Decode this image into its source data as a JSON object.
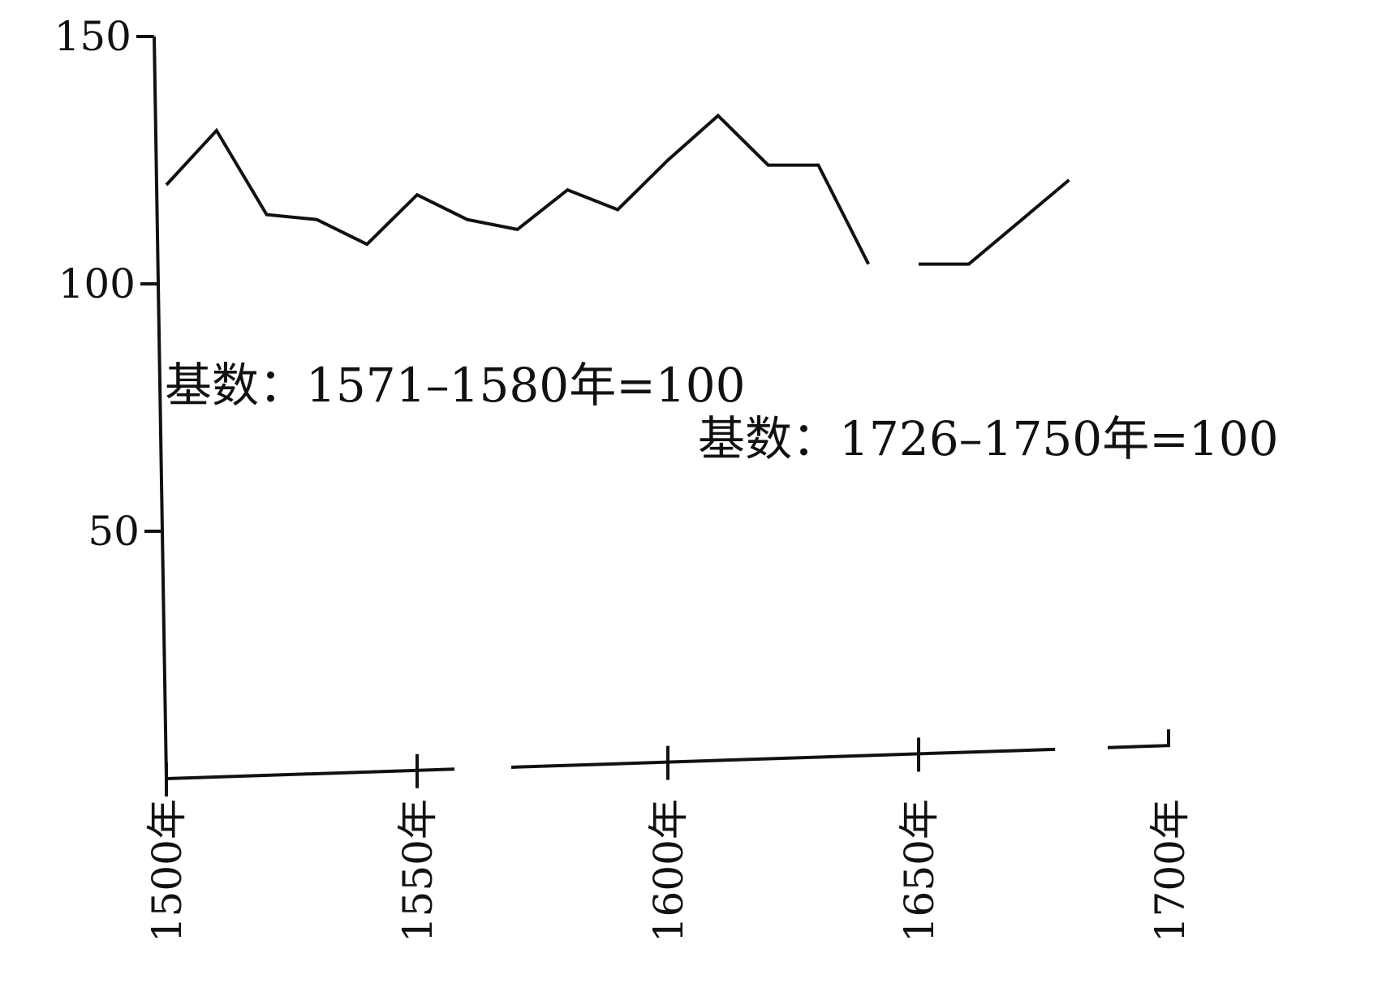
{
  "chart_data": {
    "type": "line",
    "ylim": [
      0,
      150
    ],
    "xlim": [
      1500,
      1700
    ],
    "y_ticks": [
      {
        "value": 150,
        "label": "150"
      },
      {
        "value": 100,
        "label": "100"
      },
      {
        "value": 50,
        "label": "50"
      }
    ],
    "x_ticks": [
      {
        "value": 1500,
        "label": "1500年"
      },
      {
        "value": 1550,
        "label": "1550年"
      },
      {
        "value": 1600,
        "label": "1600年"
      },
      {
        "value": 1650,
        "label": "1650年"
      },
      {
        "value": 1700,
        "label": "1700年"
      }
    ],
    "annotations": [
      {
        "text": "基数：1571–1580年=100"
      },
      {
        "text": "基数：1726–1750年=100"
      }
    ],
    "series": [
      {
        "segments": [
          {
            "x": [
              1500,
              1510,
              1520,
              1530,
              1540,
              1550,
              1560,
              1570,
              1580,
              1590,
              1600,
              1610,
              1620,
              1630,
              1640
            ],
            "y": [
              120,
              131,
              114,
              113,
              108,
              118,
              113,
              111,
              119,
              115,
              125,
              134,
              124,
              124,
              104
            ]
          },
          {
            "x": [
              1650,
              1660,
              1680
            ],
            "y": [
              104,
              104,
              121
            ]
          }
        ]
      }
    ],
    "grid": false,
    "legend": "none"
  }
}
